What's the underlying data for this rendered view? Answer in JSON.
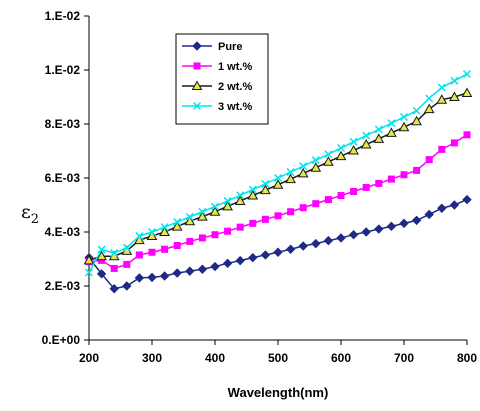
{
  "chart_data": {
    "type": "line",
    "title": "",
    "xlabel": "Wavelength(nm)",
    "ylabel_base": "ε",
    "ylabel_sub": "2",
    "xlim": [
      200,
      800
    ],
    "ylim": [
      0,
      0.012
    ],
    "x_ticks": [
      200,
      300,
      400,
      500,
      600,
      700,
      800
    ],
    "x_tick_labels": [
      "200",
      "300",
      "400",
      "500",
      "600",
      "700",
      "800"
    ],
    "y_ticks": [
      0,
      0.002,
      0.004,
      0.006,
      0.008,
      0.01,
      0.012
    ],
    "y_tick_labels": [
      "0.E+00",
      "2.E-03",
      "4.E-03",
      "6.E-03",
      "8.E-03",
      "1.E-02",
      "1.E-02"
    ],
    "grid": false,
    "legend_position": "top-left",
    "x": [
      200,
      220,
      240,
      260,
      280,
      300,
      320,
      340,
      360,
      380,
      400,
      420,
      440,
      460,
      480,
      500,
      520,
      540,
      560,
      580,
      600,
      620,
      640,
      660,
      680,
      700,
      720,
      740,
      760,
      780,
      800
    ],
    "series": [
      {
        "name": "Pure",
        "color": "#1f2a86",
        "marker": "diamond",
        "values": [
          0.00305,
          0.00245,
          0.0019,
          0.002,
          0.0023,
          0.00232,
          0.00237,
          0.00248,
          0.00255,
          0.00262,
          0.00272,
          0.00284,
          0.00294,
          0.00305,
          0.00315,
          0.00325,
          0.00336,
          0.00348,
          0.00357,
          0.00368,
          0.00378,
          0.0039,
          0.004,
          0.00411,
          0.00421,
          0.00432,
          0.00443,
          0.00465,
          0.00488,
          0.005,
          0.0052
        ]
      },
      {
        "name": "1 wt.%",
        "color": "#ff00ff",
        "marker": "square",
        "values": [
          0.0029,
          0.00295,
          0.00265,
          0.0028,
          0.00315,
          0.00325,
          0.00336,
          0.0035,
          0.00365,
          0.00378,
          0.0039,
          0.00403,
          0.00418,
          0.00432,
          0.00447,
          0.0046,
          0.00475,
          0.0049,
          0.00505,
          0.0052,
          0.00535,
          0.0055,
          0.00565,
          0.0058,
          0.00596,
          0.00612,
          0.00628,
          0.00668,
          0.00706,
          0.0073,
          0.0076
        ]
      },
      {
        "name": "2 wt.%",
        "color": "#1a1a1a",
        "fill": "#e6e64a",
        "marker": "triangle",
        "values": [
          0.00295,
          0.0031,
          0.0031,
          0.0033,
          0.0037,
          0.00385,
          0.004,
          0.0042,
          0.0044,
          0.00457,
          0.00475,
          0.00495,
          0.00515,
          0.00535,
          0.00555,
          0.00575,
          0.00596,
          0.00617,
          0.00638,
          0.0066,
          0.00681,
          0.00702,
          0.00724,
          0.00745,
          0.00767,
          0.00788,
          0.0081,
          0.00855,
          0.0089,
          0.009,
          0.00915
        ]
      },
      {
        "name": "3 wt.%",
        "color": "#00e5ee",
        "marker": "x",
        "values": [
          0.0025,
          0.00335,
          0.00322,
          0.00342,
          0.00385,
          0.004,
          0.00418,
          0.00437,
          0.00456,
          0.00475,
          0.00494,
          0.00515,
          0.00536,
          0.00557,
          0.00578,
          0.006,
          0.00622,
          0.00644,
          0.00666,
          0.00688,
          0.00711,
          0.00734,
          0.00757,
          0.0078,
          0.00803,
          0.00826,
          0.00849,
          0.00895,
          0.00935,
          0.0096,
          0.00985
        ]
      }
    ]
  }
}
